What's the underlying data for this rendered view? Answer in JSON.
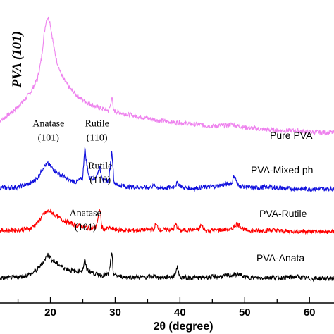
{
  "chart_data": {
    "type": "line",
    "title": "",
    "xlabel": "2θ (degree)",
    "ylabel": "",
    "xlim": [
      12,
      64
    ],
    "xticks": [
      20,
      30,
      40,
      50,
      60
    ],
    "yticks_shown": false,
    "grid": false,
    "series": [
      {
        "name": "Pure PVA",
        "color": "#ee82ee",
        "x": [
          12,
          14,
          16,
          17,
          18,
          18.6,
          19.0,
          19.3,
          19.6,
          19.9,
          20.2,
          20.6,
          21,
          21.5,
          22,
          23,
          24,
          25,
          26,
          27,
          28,
          29,
          29.3,
          29.5,
          29.7,
          30,
          31,
          32,
          33,
          35,
          37,
          40,
          43,
          45,
          47,
          48,
          49,
          50,
          52,
          55,
          58,
          60,
          63,
          64
        ],
        "y": [
          0.18,
          0.33,
          0.52,
          0.65,
          0.85,
          1.15,
          1.52,
          1.72,
          1.8,
          1.74,
          1.55,
          1.3,
          1.12,
          0.96,
          0.85,
          0.7,
          0.6,
          0.52,
          0.47,
          0.42,
          0.39,
          0.36,
          0.45,
          0.6,
          0.37,
          0.35,
          0.32,
          0.3,
          0.28,
          0.24,
          0.2,
          0.17,
          0.14,
          0.12,
          0.13,
          0.15,
          0.12,
          0.1,
          0.08,
          0.05,
          0.05,
          0.03,
          0.02,
          0.02
        ]
      },
      {
        "name": "PVA-Mixed ph",
        "color": "#1010dd",
        "x": [
          12,
          15,
          17,
          18,
          19,
          19.6,
          20.2,
          21,
          22,
          23,
          24,
          25,
          25.3,
          25.6,
          26,
          27,
          27.6,
          28.2,
          29,
          29.5,
          29.8,
          30.2,
          31,
          33,
          35,
          36,
          37,
          39,
          39.6,
          40.5,
          42,
          44,
          46,
          48,
          48.4,
          49,
          51,
          54,
          56,
          60,
          64
        ],
        "y": [
          0.05,
          0.06,
          0.12,
          0.2,
          0.38,
          0.42,
          0.36,
          0.28,
          0.22,
          0.16,
          0.14,
          0.2,
          0.68,
          0.42,
          0.2,
          0.2,
          0.36,
          0.15,
          0.16,
          0.63,
          0.14,
          0.1,
          0.08,
          0.06,
          0.05,
          0.08,
          0.04,
          0.06,
          0.12,
          0.05,
          0.04,
          0.06,
          0.08,
          0.12,
          0.24,
          0.08,
          0.05,
          0.06,
          0.04,
          0.03,
          0.03
        ]
      },
      {
        "name": "PVA-Rutile",
        "color": "#ff0000",
        "x": [
          12,
          15,
          17,
          18,
          19,
          19.8,
          20.5,
          21,
          22,
          23,
          24,
          25,
          26,
          27,
          27.7,
          27.9,
          28.3,
          29,
          30,
          32,
          34,
          36,
          36.2,
          37,
          39,
          39.3,
          40,
          41,
          43,
          43.2,
          44,
          46,
          48,
          48.8,
          50,
          52,
          54,
          56,
          60,
          64
        ],
        "y": [
          0.04,
          0.05,
          0.08,
          0.16,
          0.3,
          0.35,
          0.3,
          0.26,
          0.2,
          0.16,
          0.12,
          0.1,
          0.08,
          0.08,
          0.38,
          0.1,
          0.06,
          0.08,
          0.06,
          0.04,
          0.05,
          0.06,
          0.14,
          0.05,
          0.06,
          0.14,
          0.04,
          0.05,
          0.06,
          0.13,
          0.04,
          0.05,
          0.06,
          0.15,
          0.05,
          0.04,
          0.05,
          0.03,
          0.03,
          0.02
        ]
      },
      {
        "name": "PVA-Anata",
        "color": "#000000",
        "x": [
          12,
          15,
          17,
          18,
          19,
          19.6,
          20.2,
          21,
          22,
          23,
          24,
          25,
          25.3,
          25.6,
          26,
          27,
          28,
          29,
          29.5,
          29.7,
          30,
          31,
          33,
          35,
          36,
          37,
          38,
          39,
          39.6,
          40,
          42,
          44,
          46,
          48,
          49,
          50,
          52,
          54,
          56,
          58,
          60,
          64
        ],
        "y": [
          0.03,
          0.05,
          0.1,
          0.17,
          0.3,
          0.4,
          0.32,
          0.26,
          0.2,
          0.16,
          0.14,
          0.16,
          0.32,
          0.18,
          0.14,
          0.1,
          0.08,
          0.1,
          0.42,
          0.12,
          0.08,
          0.06,
          0.05,
          0.05,
          0.07,
          0.04,
          0.05,
          0.06,
          0.2,
          0.05,
          0.04,
          0.05,
          0.06,
          0.08,
          0.1,
          0.05,
          0.04,
          0.05,
          0.04,
          0.06,
          0.03,
          0.03
        ]
      }
    ],
    "annotations": [
      {
        "text": "PVA (101)",
        "series": "Pure PVA",
        "x": 19.6,
        "rotated": true
      },
      {
        "text": "Anatase",
        "series": "PVA-Mixed ph",
        "x": 19.7,
        "row": 1
      },
      {
        "text": "(101)",
        "series": "PVA-Mixed ph",
        "x": 19.7,
        "row": 2
      },
      {
        "text": "Rutile",
        "series": "PVA-Mixed ph",
        "x": 27.2,
        "row": 1
      },
      {
        "text": "(110)",
        "series": "PVA-Mixed ph",
        "x": 27.2,
        "row": 2
      },
      {
        "text": "Rutile",
        "series": "PVA-Rutile",
        "x": 27.7,
        "row": 1
      },
      {
        "text": "(110)",
        "series": "PVA-Rutile",
        "x": 27.7,
        "row": 2
      },
      {
        "text": "Anatase",
        "series": "PVA-Anata",
        "x": 25.4,
        "row": 1
      },
      {
        "text": "(101)",
        "series": "PVA-Anata",
        "x": 25.4,
        "row": 2
      }
    ]
  }
}
